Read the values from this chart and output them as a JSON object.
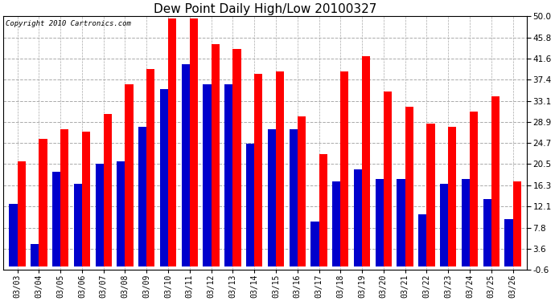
{
  "title": "Dew Point Daily High/Low 20100327",
  "copyright": "Copyright 2010 Cartronics.com",
  "dates": [
    "03/03",
    "03/04",
    "03/05",
    "03/06",
    "03/07",
    "03/08",
    "03/09",
    "03/10",
    "03/11",
    "03/12",
    "03/13",
    "03/14",
    "03/15",
    "03/16",
    "03/17",
    "03/18",
    "03/19",
    "03/20",
    "03/21",
    "03/22",
    "03/23",
    "03/24",
    "03/25",
    "03/26"
  ],
  "highs": [
    21.0,
    25.5,
    27.5,
    27.0,
    30.5,
    36.5,
    39.5,
    49.5,
    49.5,
    44.5,
    43.5,
    38.5,
    39.0,
    30.0,
    22.5,
    39.0,
    42.0,
    35.0,
    32.0,
    28.5,
    28.0,
    31.0,
    34.0,
    17.0
  ],
  "lows": [
    12.5,
    4.5,
    19.0,
    16.5,
    20.5,
    21.0,
    28.0,
    35.5,
    40.5,
    36.5,
    36.5,
    24.5,
    27.5,
    27.5,
    9.0,
    17.0,
    19.5,
    17.5,
    17.5,
    10.5,
    16.5,
    17.5,
    13.5,
    9.5
  ],
  "high_color": "#ff0000",
  "low_color": "#0000cc",
  "bar_width": 0.38,
  "ylim": [
    -0.6,
    50.0
  ],
  "yticks": [
    50.0,
    45.8,
    41.6,
    37.4,
    33.1,
    28.9,
    24.7,
    20.5,
    16.3,
    12.1,
    7.8,
    3.6,
    -0.6
  ],
  "bg_color": "#ffffff",
  "plot_bg": "#ffffff",
  "grid_color": "#aaaaaa",
  "title_fontsize": 11,
  "copyright_fontsize": 6.5,
  "figwidth": 6.9,
  "figheight": 3.75,
  "dpi": 100
}
